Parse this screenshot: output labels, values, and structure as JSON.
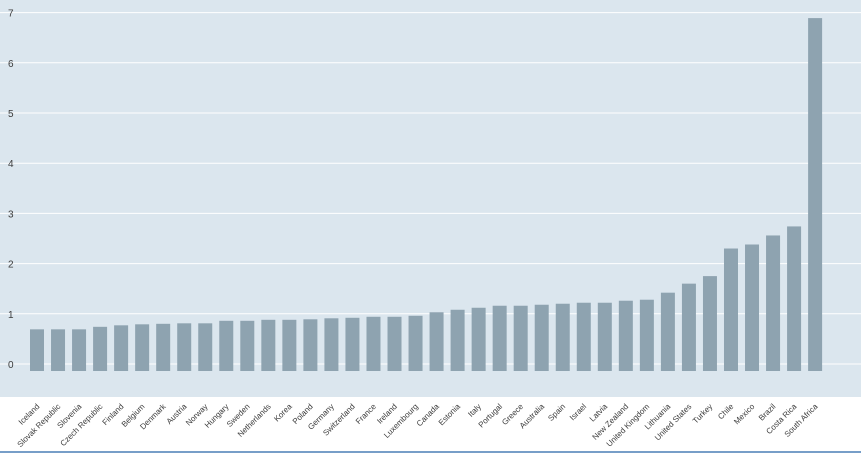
{
  "chart_data": {
    "type": "bar",
    "title": "",
    "xlabel": "",
    "ylabel": "",
    "ylim": [
      0,
      7
    ],
    "yticks": [
      0,
      1,
      2,
      3,
      4,
      5,
      6,
      7
    ],
    "grid": true,
    "categories": [
      "Iceland",
      "Slovak Republic",
      "Slovenia",
      "Czech Republic",
      "Finland",
      "Belgium",
      "Denmark",
      "Austria",
      "Norway",
      "Hungary",
      "Sweden",
      "Netherlands",
      "Korea",
      "Poland",
      "Germany",
      "Switzerland",
      "France",
      "Ireland",
      "Luxembourg",
      "Canada",
      "Estonia",
      "Italy",
      "Portugal",
      "Greece",
      "Australia",
      "Spain",
      "Israel",
      "Latvia",
      "New Zealand",
      "United Kingdom",
      "Lithuania",
      "United States",
      "Turkey",
      "Chile",
      "Mexico",
      "Brazil",
      "Costa Rica",
      "South Africa"
    ],
    "values": [
      0.83,
      0.83,
      0.83,
      0.88,
      0.91,
      0.93,
      0.94,
      0.95,
      0.95,
      1.0,
      1.0,
      1.02,
      1.02,
      1.03,
      1.05,
      1.06,
      1.08,
      1.08,
      1.1,
      1.17,
      1.22,
      1.26,
      1.3,
      1.3,
      1.32,
      1.34,
      1.36,
      1.36,
      1.4,
      1.42,
      1.56,
      1.74,
      1.89,
      2.44,
      2.52,
      2.7,
      2.88,
      7.03
    ],
    "colors": {
      "background": "#dbe6ee",
      "bar": "#8ea3b0",
      "grid": "#ffffff",
      "tick_text": "#3c3c3c",
      "bottom_rule": "#4a7fb5"
    }
  }
}
